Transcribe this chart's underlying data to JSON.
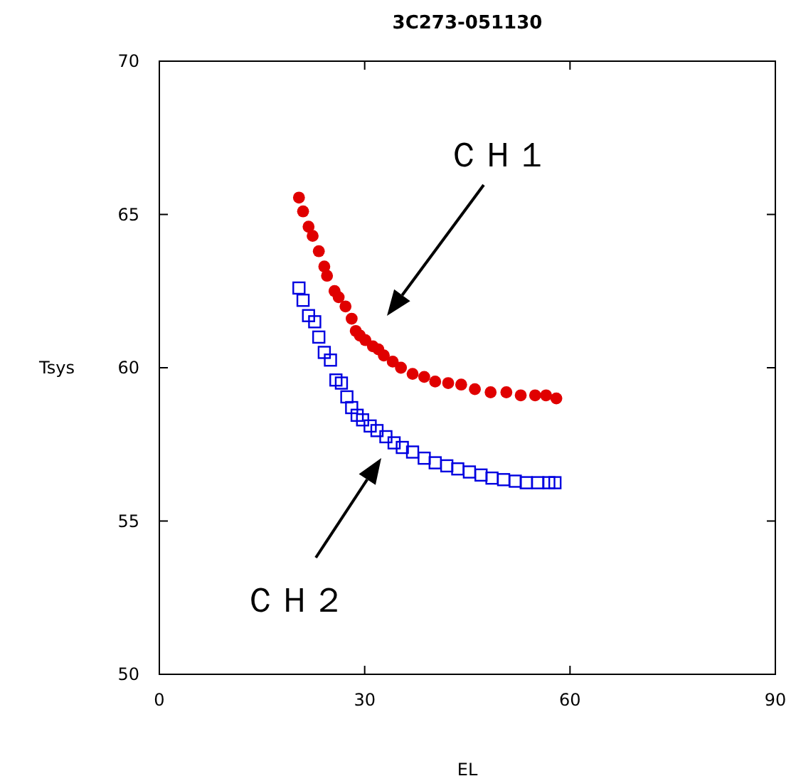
{
  "chart_data": {
    "type": "scatter",
    "title": "3C273-051130",
    "xlabel": "EL",
    "ylabel": "Tsys",
    "xlim": [
      0,
      90
    ],
    "xticks": [
      0,
      30,
      60,
      90
    ],
    "ylim": [
      50,
      70
    ],
    "yticks": [
      50,
      55,
      60,
      65,
      70
    ],
    "grid": false,
    "annotations": [
      "ＣＨ１",
      "ＣＨ２"
    ],
    "series": [
      {
        "color": "#e00000",
        "marker": "circle",
        "x": [
          20.4,
          21.0,
          21.8,
          22.4,
          23.3,
          24.1,
          24.5,
          25.6,
          26.2,
          27.2,
          28.1,
          28.7,
          29.3,
          30.1,
          31.2,
          32.0,
          32.8,
          34.1,
          35.3,
          37.0,
          38.7,
          40.3,
          42.2,
          44.1,
          46.1,
          48.4,
          50.7,
          52.8,
          54.9,
          56.5,
          58.0
        ],
        "values": [
          65.55,
          65.1,
          64.6,
          64.3,
          63.8,
          63.3,
          63.0,
          62.5,
          62.3,
          62.0,
          61.6,
          61.2,
          61.05,
          60.9,
          60.7,
          60.6,
          60.4,
          60.2,
          60.0,
          59.8,
          59.7,
          59.55,
          59.5,
          59.45,
          59.3,
          59.2,
          59.2,
          59.1,
          59.1,
          59.1,
          59.0
        ]
      },
      {
        "color": "#0000e0",
        "marker": "square",
        "x": [
          20.4,
          21.0,
          21.8,
          22.7,
          23.3,
          24.1,
          25.0,
          25.8,
          26.6,
          27.4,
          28.1,
          28.9,
          29.7,
          30.8,
          31.8,
          33.1,
          34.3,
          35.5,
          37.0,
          38.7,
          40.3,
          42.0,
          43.6,
          45.3,
          47.0,
          48.6,
          50.3,
          52.0,
          53.6,
          55.3,
          56.9,
          57.8
        ],
        "values": [
          62.6,
          62.2,
          61.7,
          61.5,
          61.0,
          60.5,
          60.25,
          59.6,
          59.5,
          59.05,
          58.7,
          58.45,
          58.3,
          58.1,
          57.95,
          57.75,
          57.55,
          57.4,
          57.25,
          57.05,
          56.9,
          56.8,
          56.7,
          56.6,
          56.5,
          56.4,
          56.35,
          56.3,
          56.25,
          56.25,
          56.25,
          56.25
        ]
      }
    ]
  }
}
